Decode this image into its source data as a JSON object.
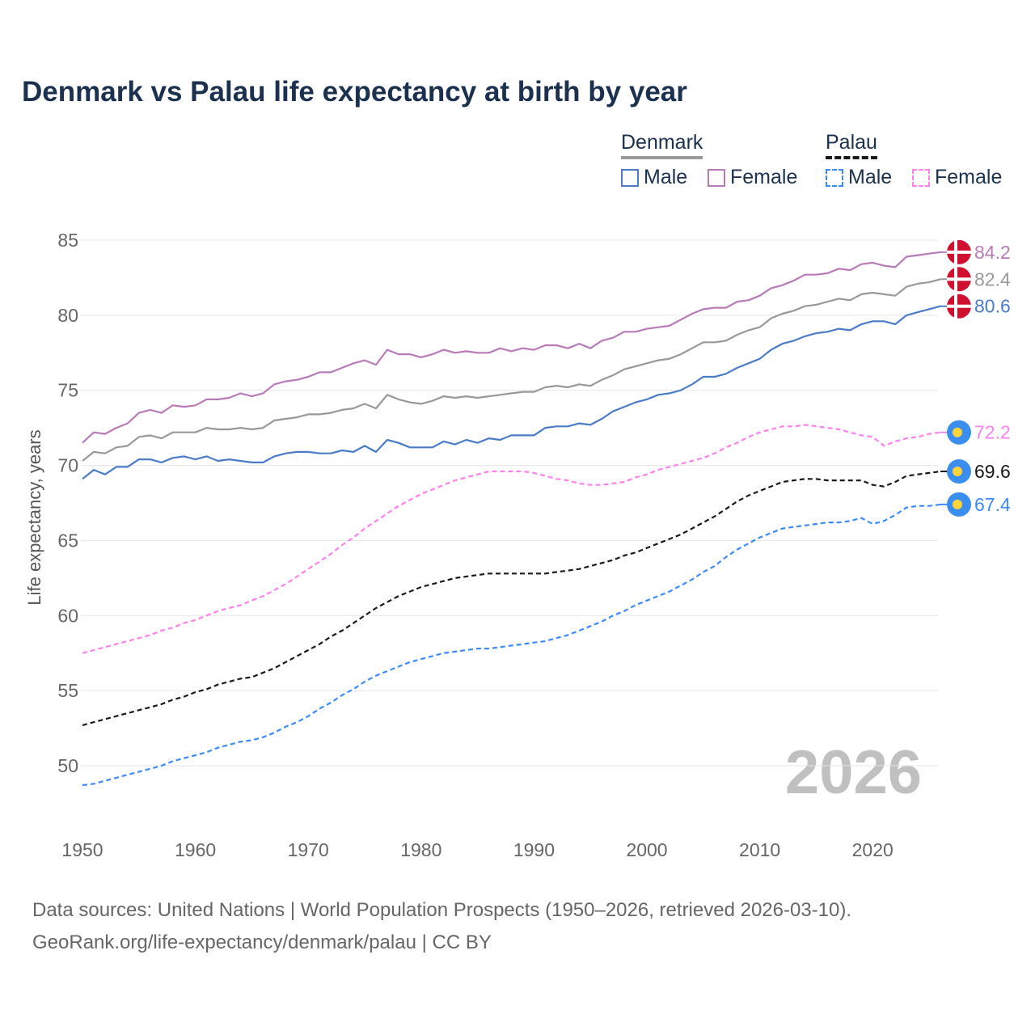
{
  "title": "Denmark vs Palau life expectancy at birth by year",
  "legend": {
    "groups": [
      {
        "name": "Denmark",
        "color": "#999999",
        "items": [
          {
            "label": "Male",
            "color": "#4a7cc9"
          },
          {
            "label": "Female",
            "color": "#b87bb8"
          }
        ]
      },
      {
        "name": "Palau",
        "color": "#1a1a1a",
        "items": [
          {
            "label": "Male",
            "color": "#3c8aff"
          },
          {
            "label": "Female",
            "color": "#ff80ee"
          }
        ]
      }
    ]
  },
  "current_year": "2026",
  "source": {
    "line1": "Data sources: United Nations | World Population Prospects (1950–2026, retrieved 2026-03-10).",
    "line2": "GeoRank.org/life-expectancy/denmark/palau | CC BY"
  },
  "chart_data": {
    "type": "line",
    "title": "Denmark vs Palau life expectancy at birth by year",
    "xlabel": "",
    "ylabel": "Life expectancy, years",
    "xlim": [
      1950,
      2026
    ],
    "ylim": [
      50,
      85
    ],
    "xticks": [
      1950,
      1960,
      1970,
      1980,
      1990,
      2000,
      2010,
      2020
    ],
    "yticks": [
      50,
      55,
      60,
      65,
      70,
      75,
      80,
      85
    ],
    "grid": true,
    "legend_position": "top-right",
    "x_start": 1950,
    "series": [
      {
        "name": "Denmark Female",
        "country": "Denmark",
        "color": "#b87bb8",
        "dash": false,
        "flag": "denmark",
        "end_label": "84.2",
        "values": [
          71.5,
          72.2,
          72.1,
          72.5,
          72.8,
          73.5,
          73.7,
          73.5,
          74.0,
          73.9,
          74.0,
          74.4,
          74.4,
          74.5,
          74.8,
          74.6,
          74.8,
          75.4,
          75.6,
          75.7,
          75.9,
          76.2,
          76.2,
          76.5,
          76.8,
          77.0,
          76.7,
          77.7,
          77.4,
          77.4,
          77.2,
          77.4,
          77.7,
          77.5,
          77.6,
          77.5,
          77.5,
          77.8,
          77.6,
          77.8,
          77.7,
          78.0,
          78.0,
          77.8,
          78.1,
          77.8,
          78.3,
          78.5,
          78.9,
          78.9,
          79.1,
          79.2,
          79.3,
          79.7,
          80.1,
          80.4,
          80.5,
          80.5,
          80.9,
          81.0,
          81.3,
          81.8,
          82.0,
          82.3,
          82.7,
          82.7,
          82.8,
          83.1,
          83.0,
          83.4,
          83.5,
          83.3,
          83.2,
          83.9,
          84.0,
          84.1,
          84.2
        ]
      },
      {
        "name": "Denmark Total",
        "country": "Denmark",
        "color": "#999999",
        "dash": false,
        "flag": "denmark",
        "end_label": "82.4",
        "values": [
          70.3,
          70.9,
          70.8,
          71.2,
          71.3,
          71.9,
          72.0,
          71.8,
          72.2,
          72.2,
          72.2,
          72.5,
          72.4,
          72.4,
          72.5,
          72.4,
          72.5,
          73.0,
          73.1,
          73.2,
          73.4,
          73.4,
          73.5,
          73.7,
          73.8,
          74.1,
          73.8,
          74.7,
          74.4,
          74.2,
          74.1,
          74.3,
          74.6,
          74.5,
          74.6,
          74.5,
          74.6,
          74.7,
          74.8,
          74.9,
          74.9,
          75.2,
          75.3,
          75.2,
          75.4,
          75.3,
          75.7,
          76.0,
          76.4,
          76.6,
          76.8,
          77.0,
          77.1,
          77.4,
          77.8,
          78.2,
          78.2,
          78.3,
          78.7,
          79.0,
          79.2,
          79.8,
          80.1,
          80.3,
          80.6,
          80.7,
          80.9,
          81.1,
          81.0,
          81.4,
          81.5,
          81.4,
          81.3,
          81.9,
          82.1,
          82.2,
          82.4
        ]
      },
      {
        "name": "Denmark Male",
        "country": "Denmark",
        "color": "#4a7cc9",
        "dash": false,
        "flag": "denmark",
        "end_label": "80.6",
        "values": [
          69.1,
          69.7,
          69.4,
          69.9,
          69.9,
          70.4,
          70.4,
          70.2,
          70.5,
          70.6,
          70.4,
          70.6,
          70.3,
          70.4,
          70.3,
          70.2,
          70.2,
          70.6,
          70.8,
          70.9,
          70.9,
          70.8,
          70.8,
          71.0,
          70.9,
          71.3,
          70.9,
          71.7,
          71.5,
          71.2,
          71.2,
          71.2,
          71.6,
          71.4,
          71.7,
          71.5,
          71.8,
          71.7,
          72.0,
          72.0,
          72.0,
          72.5,
          72.6,
          72.6,
          72.8,
          72.7,
          73.1,
          73.6,
          73.9,
          74.2,
          74.4,
          74.7,
          74.8,
          75.0,
          75.4,
          75.9,
          75.9,
          76.1,
          76.5,
          76.8,
          77.1,
          77.7,
          78.1,
          78.3,
          78.6,
          78.8,
          78.9,
          79.1,
          79.0,
          79.4,
          79.6,
          79.6,
          79.4,
          80.0,
          80.2,
          80.4,
          80.6
        ]
      },
      {
        "name": "Palau Female",
        "country": "Palau",
        "color": "#ff80ee",
        "dash": true,
        "flag": "palau",
        "end_label": "72.2",
        "values": [
          57.5,
          57.7,
          57.9,
          58.1,
          58.3,
          58.5,
          58.7,
          59.0,
          59.2,
          59.5,
          59.7,
          60.0,
          60.3,
          60.5,
          60.7,
          61.0,
          61.3,
          61.7,
          62.1,
          62.6,
          63.1,
          63.6,
          64.1,
          64.7,
          65.2,
          65.8,
          66.3,
          66.8,
          67.3,
          67.7,
          68.1,
          68.4,
          68.7,
          69.0,
          69.2,
          69.4,
          69.6,
          69.6,
          69.6,
          69.6,
          69.5,
          69.3,
          69.1,
          69.0,
          68.8,
          68.7,
          68.7,
          68.8,
          68.9,
          69.2,
          69.4,
          69.7,
          69.9,
          70.1,
          70.3,
          70.5,
          70.8,
          71.2,
          71.5,
          71.9,
          72.2,
          72.4,
          72.6,
          72.6,
          72.7,
          72.6,
          72.5,
          72.4,
          72.2,
          72.0,
          71.9,
          71.3,
          71.6,
          71.8,
          71.9,
          72.1,
          72.2
        ]
      },
      {
        "name": "Palau Total",
        "country": "Palau",
        "color": "#1a1a1a",
        "dash": true,
        "flag": "palau",
        "end_label": "69.6",
        "values": [
          52.7,
          52.9,
          53.1,
          53.3,
          53.5,
          53.7,
          53.9,
          54.1,
          54.4,
          54.6,
          54.9,
          55.1,
          55.4,
          55.6,
          55.8,
          55.9,
          56.2,
          56.5,
          56.9,
          57.3,
          57.7,
          58.1,
          58.6,
          59.0,
          59.5,
          60.0,
          60.5,
          60.9,
          61.3,
          61.6,
          61.9,
          62.1,
          62.3,
          62.5,
          62.6,
          62.7,
          62.8,
          62.8,
          62.8,
          62.8,
          62.8,
          62.8,
          62.9,
          63.0,
          63.1,
          63.3,
          63.5,
          63.7,
          64.0,
          64.2,
          64.5,
          64.8,
          65.1,
          65.4,
          65.8,
          66.2,
          66.6,
          67.1,
          67.6,
          68.0,
          68.3,
          68.6,
          68.9,
          69.0,
          69.1,
          69.1,
          69.0,
          69.0,
          69.0,
          69.0,
          68.7,
          68.6,
          68.9,
          69.3,
          69.4,
          69.5,
          69.6
        ]
      },
      {
        "name": "Palau Male",
        "country": "Palau",
        "color": "#3c8aff",
        "dash": true,
        "flag": "palau",
        "end_label": "67.4",
        "values": [
          48.7,
          48.8,
          49.0,
          49.2,
          49.4,
          49.6,
          49.8,
          50.0,
          50.3,
          50.5,
          50.7,
          50.9,
          51.2,
          51.4,
          51.6,
          51.7,
          51.9,
          52.2,
          52.6,
          52.9,
          53.3,
          53.8,
          54.2,
          54.7,
          55.1,
          55.6,
          56.0,
          56.3,
          56.6,
          56.9,
          57.1,
          57.3,
          57.5,
          57.6,
          57.7,
          57.8,
          57.8,
          57.9,
          58.0,
          58.1,
          58.2,
          58.3,
          58.5,
          58.7,
          59.0,
          59.3,
          59.6,
          60.0,
          60.3,
          60.7,
          61.0,
          61.3,
          61.6,
          62.0,
          62.4,
          62.9,
          63.3,
          63.9,
          64.4,
          64.8,
          65.2,
          65.5,
          65.8,
          65.9,
          66.0,
          66.1,
          66.2,
          66.2,
          66.3,
          66.5,
          66.1,
          66.3,
          66.7,
          67.2,
          67.3,
          67.3,
          67.4
        ]
      }
    ]
  }
}
